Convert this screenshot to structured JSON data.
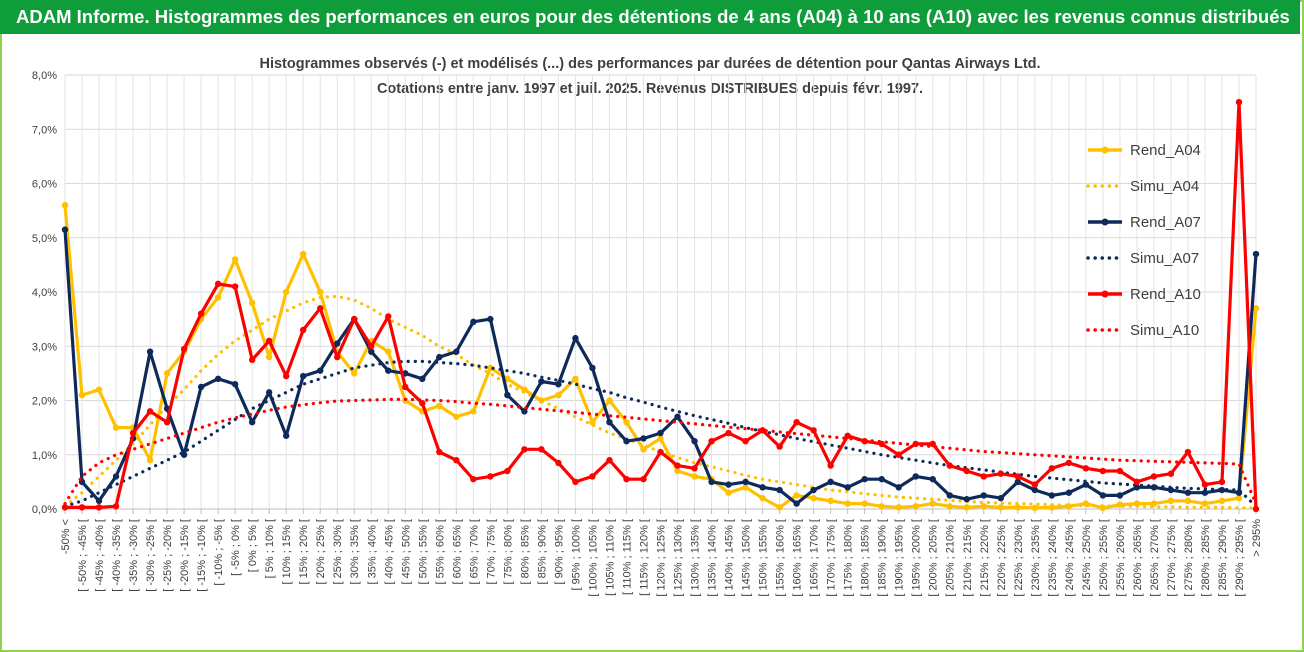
{
  "banner": {
    "text": "ADAM Informe. Histogrammes des performances en euros pour des détentions de 4 ans (A04) à 10 ans (A10) avec les revenus connus distribués",
    "background": "#0f9d3b",
    "color": "#ffffff"
  },
  "chart_data": {
    "type": "line",
    "title": "Histogrammes observés (-) et modélisés (...) des performances par durées de détention pour Qantas Airways Ltd.",
    "subtitle": "Cotations entre janv. 1997 et juil. 2025. Revenus DISTRIBUES depuis févr. 1997.",
    "xlabel": "",
    "ylabel": "",
    "ylim": [
      0,
      8
    ],
    "y_ticks": [
      "0,0%",
      "1,0%",
      "2,0%",
      "3,0%",
      "4,0%",
      "5,0%",
      "6,0%",
      "7,0%",
      "8,0%"
    ],
    "grid": true,
    "legend_position": "right",
    "categories": [
      "-50% <",
      "[ -50% ; -45% [",
      "[ -45% ; -40% [",
      "[ -40% ; -35% [",
      "[ -35% ; -30% [",
      "[ -30% ; -25% [",
      "[ -25% ; -20% [",
      "[ -20% ; -15% [",
      "[ -15% ; -10% [",
      "[ -10% ; -5% [",
      "[ -5% ; 0% [",
      "[ 0% ; 5% [",
      "[ 5% ; 10% [",
      "[ 10% ; 15% [",
      "[ 15% ; 20% [",
      "[ 20% ; 25% [",
      "[ 25% ; 30% [",
      "[ 30% ; 35% [",
      "[ 35% ; 40% [",
      "[ 40% ; 45% [",
      "[ 45% ; 50% [",
      "[ 50% ; 55% [",
      "[ 55% ; 60% [",
      "[ 60% ; 65% [",
      "[ 65% ; 70% [",
      "[ 70% ; 75% [",
      "[ 75% ; 80% [",
      "[ 80% ; 85% [",
      "[ 85% ; 90% [",
      "[ 90% ; 95% [",
      "[ 95% ; 100% [",
      "[ 100% ; 105% [",
      "[ 105% ; 110% [",
      "[ 110% ; 115% [",
      "[ 115% ; 120% [",
      "[ 120% ; 125% [",
      "[ 125% ; 130% [",
      "[ 130% ; 135% [",
      "[ 135% ; 140% [",
      "[ 140% ; 145% [",
      "[ 145% ; 150% [",
      "[ 150% ; 155% [",
      "[ 155% ; 160% [",
      "[ 160% ; 165% [",
      "[ 165% ; 170% [",
      "[ 170% ; 175% [",
      "[ 175% ; 180% [",
      "[ 180% ; 185% [",
      "[ 185% ; 190% [",
      "[ 190% ; 195% [",
      "[ 195% ; 200% [",
      "[ 200% ; 205% [",
      "[ 205% ; 210% [",
      "[ 210% ; 215% [",
      "[ 215% ; 220% [",
      "[ 220% ; 225% [",
      "[ 225% ; 230% [",
      "[ 230% ; 235% [",
      "[ 235% ; 240% [",
      "[ 240% ; 245% [",
      "[ 245% ; 250% [",
      "[ 250% ; 255% [",
      "[ 255% ; 260% [",
      "[ 260% ; 265% [",
      "[ 265% ; 270% [",
      "[ 270% ; 275% [",
      "[ 275% ; 280% [",
      "[ 280% ; 285% [",
      "[ 285% ; 290% [",
      "[ 290% ; 295% [",
      "> 295%"
    ],
    "series": [
      {
        "name": "Rend_A04",
        "style": "solid",
        "color": "#ffc000",
        "values": [
          5.6,
          2.1,
          2.2,
          1.5,
          1.5,
          0.9,
          2.5,
          2.9,
          3.5,
          3.9,
          4.6,
          3.8,
          2.8,
          4.0,
          4.7,
          4.0,
          2.9,
          2.5,
          3.1,
          2.9,
          2.0,
          1.8,
          1.9,
          1.7,
          1.8,
          2.6,
          2.4,
          2.2,
          2.0,
          2.1,
          2.4,
          1.6,
          2.0,
          1.6,
          1.1,
          1.3,
          0.7,
          0.6,
          0.55,
          0.3,
          0.4,
          0.2,
          0.03,
          0.25,
          0.2,
          0.15,
          0.1,
          0.1,
          0.05,
          0.03,
          0.05,
          0.1,
          0.05,
          0.03,
          0.05,
          0.03,
          0.03,
          0.02,
          0.03,
          0.05,
          0.1,
          0.02,
          0.08,
          0.1,
          0.1,
          0.15,
          0.15,
          0.1,
          0.15,
          0.2,
          3.7
        ]
      },
      {
        "name": "Simu_A04",
        "style": "dotted",
        "color": "#ffc000",
        "values": [
          0.05,
          0.3,
          0.6,
          0.9,
          1.2,
          1.55,
          1.9,
          2.2,
          2.55,
          2.85,
          3.1,
          3.3,
          3.5,
          3.65,
          3.8,
          3.9,
          3.92,
          3.85,
          3.7,
          3.5,
          3.35,
          3.2,
          3.0,
          2.85,
          2.65,
          2.5,
          2.3,
          2.15,
          2.0,
          1.85,
          1.7,
          1.55,
          1.4,
          1.3,
          1.18,
          1.05,
          0.95,
          0.85,
          0.78,
          0.7,
          0.62,
          0.55,
          0.5,
          0.45,
          0.4,
          0.35,
          0.32,
          0.28,
          0.25,
          0.22,
          0.2,
          0.18,
          0.16,
          0.14,
          0.12,
          0.11,
          0.1,
          0.09,
          0.08,
          0.07,
          0.06,
          0.06,
          0.05,
          0.05,
          0.04,
          0.04,
          0.03,
          0.03,
          0.03,
          0.02,
          0.02
        ]
      },
      {
        "name": "Rend_A07",
        "style": "solid",
        "color": "#0e2a5a",
        "values": [
          5.15,
          0.5,
          0.15,
          0.6,
          1.3,
          2.9,
          1.85,
          1.0,
          2.25,
          2.4,
          2.3,
          1.6,
          2.15,
          1.35,
          2.45,
          2.55,
          3.05,
          3.5,
          2.9,
          2.55,
          2.5,
          2.4,
          2.8,
          2.9,
          3.45,
          3.5,
          2.1,
          1.8,
          2.35,
          2.3,
          3.15,
          2.6,
          1.6,
          1.25,
          1.3,
          1.4,
          1.7,
          1.25,
          0.5,
          0.45,
          0.5,
          0.4,
          0.35,
          0.1,
          0.35,
          0.5,
          0.4,
          0.55,
          0.55,
          0.4,
          0.6,
          0.55,
          0.25,
          0.18,
          0.25,
          0.2,
          0.5,
          0.35,
          0.25,
          0.3,
          0.45,
          0.25,
          0.25,
          0.4,
          0.4,
          0.35,
          0.3,
          0.3,
          0.35,
          0.3,
          4.7
        ]
      },
      {
        "name": "Simu_A07",
        "style": "dotted",
        "color": "#0e2a5a",
        "values": [
          0.05,
          0.15,
          0.3,
          0.45,
          0.6,
          0.75,
          0.9,
          1.05,
          1.25,
          1.45,
          1.65,
          1.85,
          2.0,
          2.15,
          2.3,
          2.4,
          2.5,
          2.6,
          2.65,
          2.7,
          2.72,
          2.72,
          2.7,
          2.68,
          2.65,
          2.6,
          2.55,
          2.5,
          2.43,
          2.37,
          2.3,
          2.22,
          2.15,
          2.05,
          1.97,
          1.88,
          1.8,
          1.72,
          1.65,
          1.58,
          1.5,
          1.43,
          1.37,
          1.3,
          1.24,
          1.18,
          1.12,
          1.06,
          1.0,
          0.95,
          0.9,
          0.85,
          0.8,
          0.76,
          0.72,
          0.68,
          0.64,
          0.6,
          0.57,
          0.54,
          0.51,
          0.48,
          0.46,
          0.44,
          0.42,
          0.4,
          0.38,
          0.37,
          0.36,
          0.35,
          0.05
        ]
      },
      {
        "name": "Rend_A10",
        "style": "solid",
        "color": "#ff0000",
        "values": [
          0.03,
          0.03,
          0.03,
          0.05,
          1.4,
          1.8,
          1.6,
          2.95,
          3.6,
          4.15,
          4.1,
          2.75,
          3.1,
          2.45,
          3.3,
          3.7,
          2.8,
          3.5,
          3.0,
          3.55,
          2.25,
          1.95,
          1.05,
          0.9,
          0.55,
          0.6,
          0.7,
          1.1,
          1.1,
          0.85,
          0.5,
          0.6,
          0.9,
          0.55,
          0.55,
          1.05,
          0.8,
          0.75,
          1.25,
          1.4,
          1.25,
          1.45,
          1.15,
          1.6,
          1.45,
          0.8,
          1.35,
          1.25,
          1.2,
          1.0,
          1.2,
          1.2,
          0.8,
          0.7,
          0.6,
          0.65,
          0.6,
          0.45,
          0.75,
          0.85,
          0.75,
          0.7,
          0.7,
          0.5,
          0.6,
          0.65,
          1.05,
          0.45,
          0.5,
          7.5,
          0.0
        ]
      },
      {
        "name": "Simu_A10",
        "style": "dotted",
        "color": "#ff0000",
        "values": [
          0.1,
          0.6,
          0.85,
          1.0,
          1.1,
          1.2,
          1.3,
          1.4,
          1.5,
          1.6,
          1.68,
          1.75,
          1.82,
          1.88,
          1.92,
          1.96,
          1.99,
          2.0,
          2.01,
          2.02,
          2.02,
          2.01,
          2.0,
          1.98,
          1.95,
          1.93,
          1.9,
          1.87,
          1.84,
          1.81,
          1.78,
          1.75,
          1.72,
          1.69,
          1.66,
          1.63,
          1.6,
          1.57,
          1.54,
          1.51,
          1.48,
          1.45,
          1.42,
          1.39,
          1.36,
          1.33,
          1.3,
          1.27,
          1.24,
          1.21,
          1.18,
          1.15,
          1.12,
          1.09,
          1.06,
          1.04,
          1.02,
          1.0,
          0.98,
          0.96,
          0.94,
          0.92,
          0.9,
          0.89,
          0.88,
          0.87,
          0.86,
          0.85,
          0.84,
          0.83,
          0.1
        ]
      }
    ]
  }
}
